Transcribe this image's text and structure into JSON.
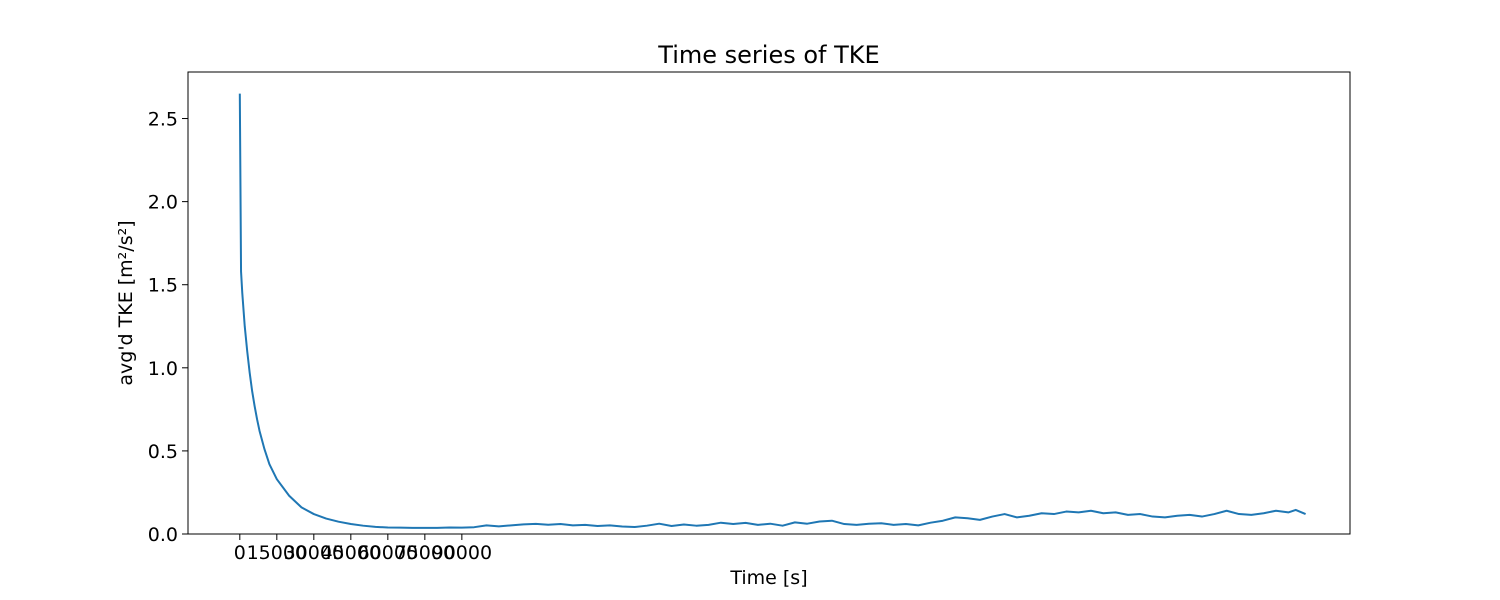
{
  "chart_data": {
    "type": "line",
    "title": "Time series of TKE",
    "xlabel": "Time [s]",
    "ylabel": "avg'd TKE [m²/s²]",
    "xlim": [
      -21000,
      450000
    ],
    "ylim": [
      0.0,
      2.78
    ],
    "xticks": [
      0,
      15000,
      30000,
      45000,
      60000,
      75000,
      90000
    ],
    "xtick_labels": [
      "0",
      "15000",
      "30000",
      "45000",
      "60000",
      "75000",
      "90000"
    ],
    "yticks": [
      0.0,
      0.5,
      1.0,
      1.5,
      2.0,
      2.5
    ],
    "ytick_labels": [
      "0.0",
      "0.5",
      "1.0",
      "1.5",
      "2.0",
      "2.5"
    ],
    "grid": false,
    "series": [
      {
        "color": "#1f77b4",
        "x": [
          0,
          500,
          1000,
          2000,
          3000,
          4000,
          5000,
          6000,
          7000,
          8000,
          10000,
          12000,
          15000,
          20000,
          25000,
          30000,
          35000,
          40000,
          45000,
          50000,
          55000,
          60000,
          65000,
          70000,
          75000,
          80000,
          85000,
          90000,
          95000,
          100000,
          105000,
          110000,
          115000,
          120000,
          125000,
          130000,
          135000,
          140000,
          145000,
          150000,
          155000,
          160000,
          165000,
          170000,
          175000,
          180000,
          185000,
          190000,
          195000,
          200000,
          205000,
          210000,
          215000,
          220000,
          225000,
          230000,
          235000,
          240000,
          245000,
          250000,
          255000,
          260000,
          265000,
          270000,
          275000,
          280000,
          285000,
          290000,
          295000,
          300000,
          305000,
          310000,
          315000,
          320000,
          325000,
          330000,
          335000,
          340000,
          345000,
          350000,
          355000,
          360000,
          365000,
          370000,
          375000,
          380000,
          385000,
          390000,
          395000,
          400000,
          405000,
          410000,
          415000,
          420000,
          425000,
          428000,
          432000
        ],
        "y": [
          2.65,
          1.58,
          1.45,
          1.25,
          1.1,
          0.97,
          0.86,
          0.77,
          0.69,
          0.62,
          0.51,
          0.42,
          0.33,
          0.23,
          0.16,
          0.12,
          0.093,
          0.074,
          0.06,
          0.05,
          0.043,
          0.039,
          0.038,
          0.037,
          0.037,
          0.037,
          0.039,
          0.038,
          0.041,
          0.052,
          0.046,
          0.052,
          0.058,
          0.061,
          0.056,
          0.06,
          0.052,
          0.055,
          0.048,
          0.052,
          0.045,
          0.042,
          0.05,
          0.062,
          0.048,
          0.057,
          0.05,
          0.055,
          0.068,
          0.06,
          0.067,
          0.055,
          0.062,
          0.05,
          0.07,
          0.062,
          0.075,
          0.08,
          0.06,
          0.055,
          0.062,
          0.065,
          0.055,
          0.06,
          0.052,
          0.068,
          0.08,
          0.1,
          0.095,
          0.085,
          0.105,
          0.12,
          0.1,
          0.11,
          0.125,
          0.12,
          0.135,
          0.13,
          0.14,
          0.125,
          0.13,
          0.115,
          0.12,
          0.105,
          0.1,
          0.11,
          0.115,
          0.105,
          0.12,
          0.14,
          0.12,
          0.115,
          0.125,
          0.14,
          0.13,
          0.145,
          0.12
        ]
      }
    ]
  }
}
